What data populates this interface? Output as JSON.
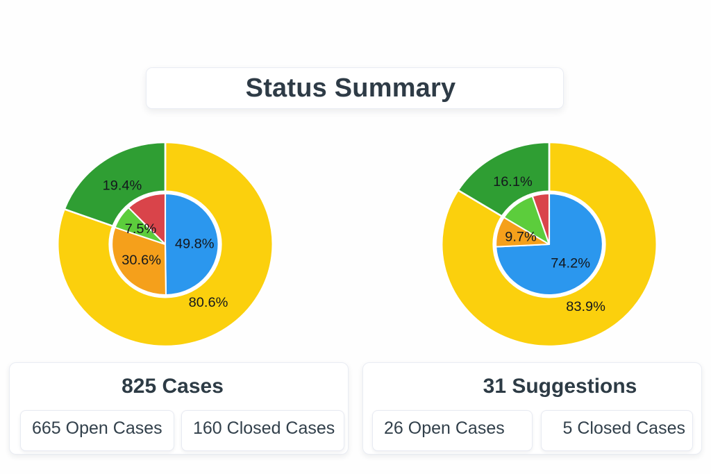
{
  "page": {
    "title": "Status Summary"
  },
  "colors": {
    "open_yellow": "#FBD00D",
    "closed_green": "#2F9E33",
    "status_blue": "#2B97EE",
    "status_orange": "#F5A01B",
    "status_light_green": "#5CCD3C",
    "status_red": "#D9444A",
    "text_dark": "#2E3B46",
    "pie_label": "#14181D",
    "card_border": "#E9ECF3"
  },
  "summary_cards": [
    {
      "title": "825 Cases",
      "items": [
        "665 Open Cases",
        "160 Closed Cases"
      ]
    },
    {
      "title": "31 Suggestions",
      "items": [
        "26 Open Cases",
        "5 Closed Cases"
      ]
    }
  ],
  "chart_data": [
    {
      "id": "cases-pie",
      "type": "pie",
      "title": "825 Cases",
      "layout": "nested pie: outer ring = open vs closed share, inner pie = status breakdown; slices start at 12 o'clock, clockwise; labels inside slices; no legend; no axes",
      "rings": {
        "outer": [
          {
            "name": "open",
            "value": 80.6,
            "label": "80.6%",
            "color": "#FBD00D"
          },
          {
            "name": "closed",
            "value": 19.4,
            "label": "19.4%",
            "color": "#2F9E33"
          }
        ],
        "inner": [
          {
            "name": "blue",
            "value": 49.8,
            "label": "49.8%",
            "color": "#2B97EE"
          },
          {
            "name": "orange",
            "value": 30.6,
            "label": "30.6%",
            "color": "#F5A01B"
          },
          {
            "name": "light-green",
            "value": 7.5,
            "label": "7.5%",
            "color": "#5CCD3C"
          },
          {
            "name": "red",
            "value": 12.1,
            "label": "",
            "color": "#D9444A"
          }
        ]
      }
    },
    {
      "id": "suggestions-pie",
      "type": "pie",
      "title": "31 Suggestions",
      "layout": "nested pie: outer ring = open vs closed share, inner pie = status breakdown; slices start at 12 o'clock, clockwise; labels inside slices; no legend; no axes",
      "rings": {
        "outer": [
          {
            "name": "open",
            "value": 83.9,
            "label": "83.9%",
            "color": "#FBD00D"
          },
          {
            "name": "closed",
            "value": 16.1,
            "label": "16.1%",
            "color": "#2F9E33"
          }
        ],
        "inner": [
          {
            "name": "blue",
            "value": 74.2,
            "label": "74.2%",
            "color": "#2B97EE"
          },
          {
            "name": "orange",
            "value": 9.7,
            "label": "9.7%",
            "color": "#F5A01B"
          },
          {
            "name": "light-green",
            "value": 11.0,
            "label": "",
            "color": "#5CCD3C"
          },
          {
            "name": "red",
            "value": 5.1,
            "label": "",
            "color": "#D9444A"
          }
        ]
      }
    }
  ]
}
